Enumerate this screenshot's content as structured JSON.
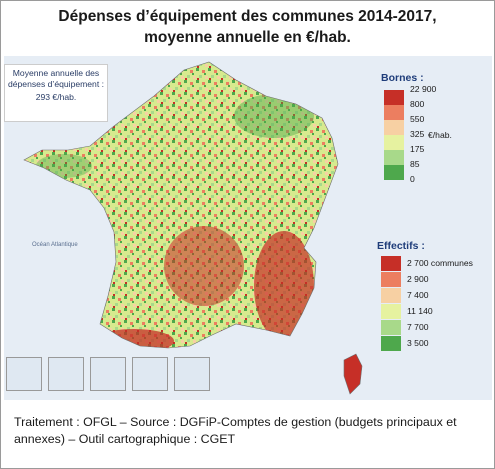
{
  "title": {
    "line1": "Dépenses d’équipement des communes 2014-2017,",
    "line2": "moyenne annuelle en €/hab."
  },
  "average": {
    "line1": "Moyenne annuelle des",
    "line2": "dépenses d’équipement :",
    "line3": "293 €/hab."
  },
  "legend_bornes": {
    "title": "Bornes :",
    "unit": "€/hab.",
    "ticks": [
      "22 900",
      "800",
      "550",
      "325",
      "175",
      "85",
      "0"
    ],
    "colors": [
      "#c62f27",
      "#ec7e60",
      "#f7d0a3",
      "#e6f2a0",
      "#a8d98a",
      "#4ea84c"
    ]
  },
  "legend_effectifs": {
    "title": "Effectifs :",
    "values": [
      "2 700 communes",
      "2 900",
      "7 400",
      "11 140",
      "7 700",
      "3 500"
    ],
    "colors": [
      "#c62f27",
      "#ec7e60",
      "#f7d0a3",
      "#e6f2a0",
      "#a8d98a",
      "#4ea84c"
    ]
  },
  "map_labels": {
    "ocean": "Océan Atlantique"
  },
  "footer": {
    "text": "Traitement : OFGL – Source : DGFiP-Comptes de gestion (budgets principaux et annexes) – Outil cartographique : CGET"
  }
}
